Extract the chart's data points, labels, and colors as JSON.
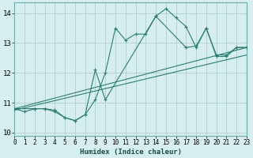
{
  "xlabel": "Humidex (Indice chaleur)",
  "background_color": "#d6eef0",
  "grid_color": "#aecece",
  "line_color": "#2e7d72",
  "xlim": [
    0,
    23
  ],
  "ylim": [
    9.9,
    14.35
  ],
  "yticks": [
    10,
    11,
    12,
    13,
    14
  ],
  "xticks": [
    0,
    1,
    2,
    3,
    4,
    5,
    6,
    7,
    8,
    9,
    10,
    11,
    12,
    13,
    14,
    15,
    16,
    17,
    18,
    19,
    20,
    21,
    22,
    23
  ],
  "series1_x": [
    0,
    1,
    2,
    3,
    4,
    5,
    6,
    7,
    8,
    9,
    10,
    11,
    12,
    13,
    14,
    15,
    16,
    17,
    18,
    19,
    20,
    21,
    22,
    23
  ],
  "series1_y": [
    10.8,
    10.7,
    10.8,
    10.8,
    10.7,
    10.5,
    10.4,
    10.6,
    11.1,
    12.0,
    13.5,
    13.1,
    13.3,
    13.3,
    13.9,
    14.15,
    13.85,
    13.55,
    12.85,
    13.5,
    12.6,
    12.6,
    12.85,
    12.85
  ],
  "series2_x": [
    0,
    2,
    3,
    4,
    5,
    6,
    7,
    8,
    9,
    14,
    17,
    18,
    19,
    20,
    21,
    22,
    23
  ],
  "series2_y": [
    10.8,
    10.8,
    10.8,
    10.75,
    10.5,
    10.4,
    10.6,
    12.1,
    11.1,
    13.9,
    12.85,
    12.9,
    13.5,
    12.55,
    12.55,
    12.85,
    12.85
  ],
  "series3_x": [
    0,
    23
  ],
  "series3_y": [
    10.8,
    12.85
  ],
  "series4_x": [
    0,
    23
  ],
  "series4_y": [
    10.75,
    12.6
  ]
}
